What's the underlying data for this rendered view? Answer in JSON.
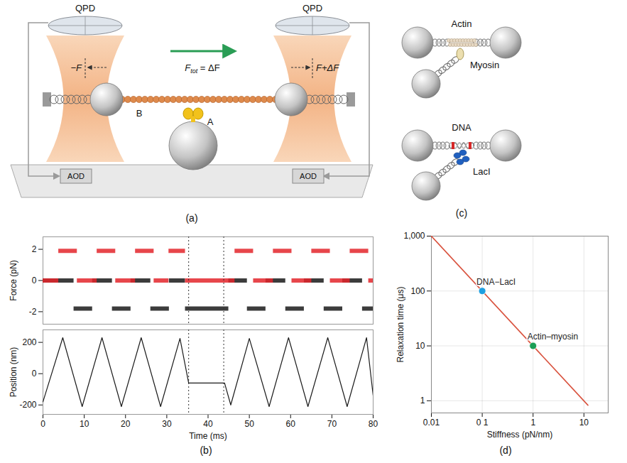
{
  "panels": {
    "a": {
      "label": "(a)",
      "qpd_left": "QPD",
      "qpd_right": "QPD",
      "force_left": "−F",
      "force_right": "F+ΔF",
      "total_force": {
        "symbol": "F",
        "subscript": "tot",
        "rest": " = ΔF"
      },
      "filament": "B",
      "motor": "A",
      "aod_left": "AOD",
      "aod_right": "AOD"
    },
    "c": {
      "label": "(c)",
      "top": {
        "filament": "Actin",
        "protein": "Myosin"
      },
      "bottom": {
        "filament": "DNA",
        "protein": "LacI"
      }
    }
  },
  "chart_data": [
    {
      "type": "step",
      "panel_label": "(b)",
      "ylabel": "Force (pN)",
      "xlim": [
        0,
        80
      ],
      "ylim": [
        -2.8,
        2.8
      ],
      "yticks": [
        -2,
        0,
        2
      ],
      "tick_labels": "y",
      "series": [
        {
          "color": "#1a1a1a",
          "x": [
            0,
            7.5,
            12,
            16.8,
            21.3,
            26.1,
            30.6,
            34.5,
            45,
            49.5,
            54,
            58.8,
            63.3,
            68.1,
            72.6,
            77.4
          ],
          "values": [
            0,
            -1.8,
            0,
            -1.8,
            0,
            -1.8,
            0,
            -1.8,
            0,
            -1.8,
            0,
            -1.8,
            0,
            -1.8,
            0,
            -1.8
          ]
        },
        {
          "color": "#e3262b",
          "x": [
            0,
            3.8,
            8.3,
            13.1,
            17.6,
            22.4,
            26.9,
            30.5,
            34.5,
            46.5,
            51,
            55.8,
            60.3,
            65.1,
            69.6,
            74.4,
            78.9
          ],
          "values": [
            0,
            1.9,
            0,
            1.9,
            0,
            1.9,
            0,
            1.9,
            0,
            1.9,
            0,
            1.9,
            0,
            1.9,
            0,
            1.9,
            0
          ]
        }
      ],
      "pause_lines": [
        35.3,
        43.8
      ]
    },
    {
      "type": "line",
      "ylabel": "Position (nm)",
      "xlabel": "Time (ms)",
      "xlim": [
        0,
        80
      ],
      "xticks": [
        0,
        10,
        20,
        30,
        40,
        50,
        60,
        70,
        80
      ],
      "ylim": [
        -260,
        280
      ],
      "yticks": [
        -200,
        0,
        200
      ],
      "color": "#1a1a1a",
      "x": [
        0,
        4.8,
        9.5,
        14.3,
        19,
        23.8,
        28.5,
        33.2,
        35.3,
        44,
        45.5,
        50,
        54.8,
        59.5,
        64.2,
        69,
        73.7,
        78.4,
        80
      ],
      "values": [
        -180,
        230,
        -210,
        230,
        -210,
        230,
        -210,
        225,
        -60,
        -60,
        -200,
        225,
        -210,
        230,
        -210,
        230,
        -210,
        230,
        -140
      ],
      "pause_lines": [
        35.3,
        43.8
      ]
    },
    {
      "type": "line",
      "panel_label": "(d)",
      "xlabel": "Stiffness (pN/nm)",
      "ylabel": "Relaxation time (μs)",
      "log": true,
      "grid": true,
      "xlim": [
        0.01,
        30
      ],
      "xticks": [
        0.01,
        {
          "value": 0.1,
          "label": "0 1"
        },
        1,
        10
      ],
      "ylim": [
        0.6,
        1000
      ],
      "yticks": [
        1,
        10,
        100,
        {
          "value": 1000,
          "label": "1,000"
        }
      ],
      "color": "#d9533f",
      "x": [
        0.01,
        12
      ],
      "values": [
        1000,
        0.83
      ],
      "points": [
        {
          "label": "DNA−LacI",
          "x": 0.1,
          "y": 100,
          "color": "#1e9fe0"
        },
        {
          "label": "Actin–myosin",
          "x": 1,
          "y": 10,
          "color": "#1b9e55"
        }
      ]
    }
  ]
}
